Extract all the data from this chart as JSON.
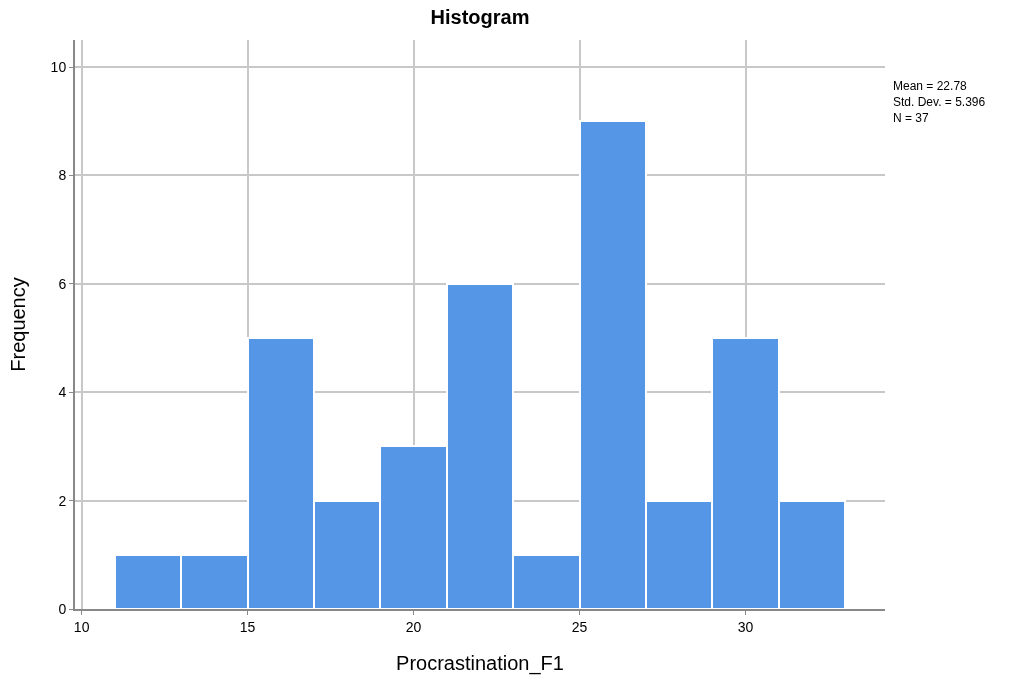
{
  "chart_data": {
    "type": "histogram",
    "title": "Histogram",
    "xlabel": "Procrastination_F1",
    "ylabel": "Frequency",
    "bins": [
      11,
      13,
      15,
      17,
      19,
      21,
      23,
      25,
      27,
      29,
      31,
      33
    ],
    "values": [
      1,
      1,
      5,
      2,
      3,
      6,
      1,
      9,
      2,
      5,
      2
    ],
    "color": "#5596e6",
    "xlim": [
      9.8,
      34.2
    ],
    "xticks": [
      10,
      15,
      20,
      25,
      30
    ],
    "ylim": [
      0,
      10.5
    ],
    "yticks": [
      0,
      2,
      4,
      6,
      8,
      10
    ],
    "grid": true,
    "annotations": [
      "Mean = 22.78",
      "Std. Dev. = 5.396",
      "N = 37"
    ]
  }
}
